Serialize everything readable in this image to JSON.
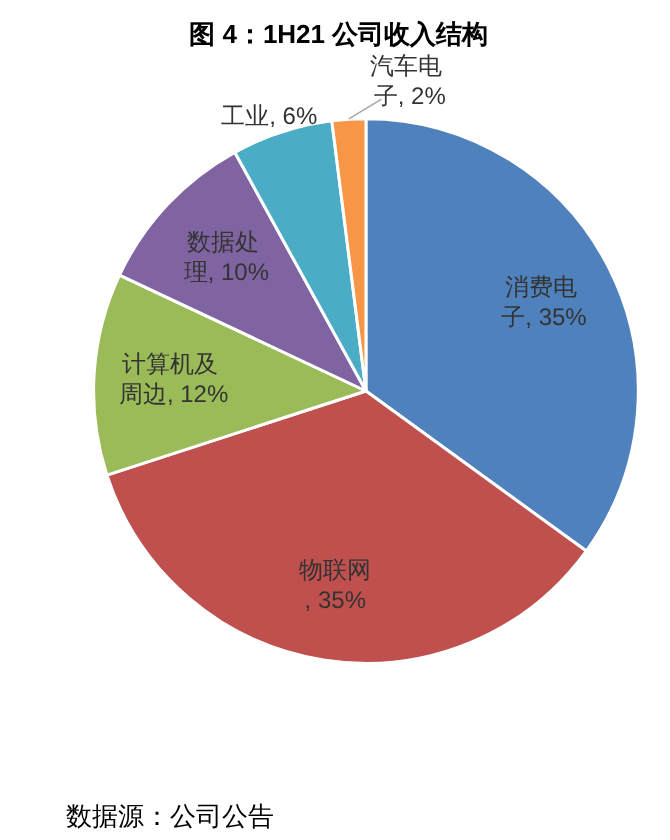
{
  "chart_data": {
    "type": "pie",
    "title": "图 4：1H21 公司收入结构",
    "categories": [
      "消费电子",
      "物联网",
      "计算机及周边",
      "数据处理",
      "工业",
      "汽车电子"
    ],
    "values": [
      35,
      35,
      12,
      10,
      6,
      2
    ],
    "value_labels": [
      ", 35%",
      ", 35%",
      ", 12%",
      ", 10%",
      ", 6%",
      ", 2%"
    ],
    "colors": [
      "#4f81bd",
      "#c0504d",
      "#9bbb59",
      "#8064a2",
      "#4bacc6",
      "#f79646"
    ],
    "annotations": [
      "数据源：公司公告"
    ]
  }
}
